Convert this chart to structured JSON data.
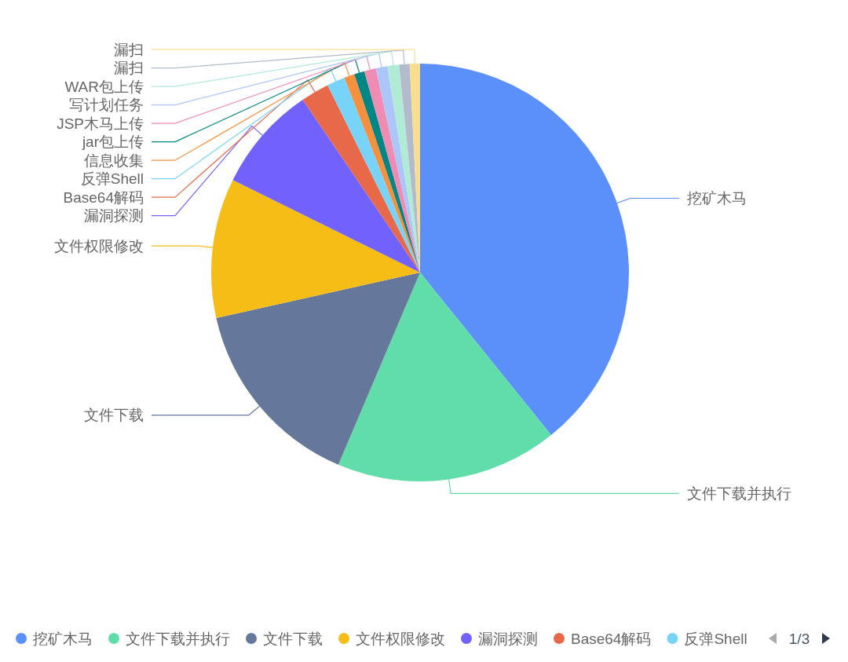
{
  "chart_data": {
    "type": "pie",
    "categories": [
      "挖矿木马",
      "文件下载并执行",
      "文件下载",
      "文件权限修改",
      "漏洞探测",
      "Base64解码",
      "反弹Shell",
      "信息收集",
      "jar包上传",
      "JSP木马上传",
      "写计划任务",
      "WAR包上传",
      "漏扫",
      "漏扫"
    ],
    "values": [
      39.2,
      17.2,
      15.1,
      10.8,
      8.2,
      2.2,
      1.4,
      0.8,
      0.8,
      0.9,
      0.9,
      0.9,
      0.8,
      0.8
    ],
    "colors": [
      "#5b8ff9",
      "#61ddaa",
      "#65789b",
      "#f6bd16",
      "#7262fd",
      "#e8684a",
      "#78d3f8",
      "#f6903d",
      "#008685",
      "#f08bb4",
      "#adc6fa",
      "#b0ebd6",
      "#b2bacb",
      "#f9df8d"
    ],
    "legend": "bottom",
    "annotations": [
      "1/3"
    ]
  }
}
